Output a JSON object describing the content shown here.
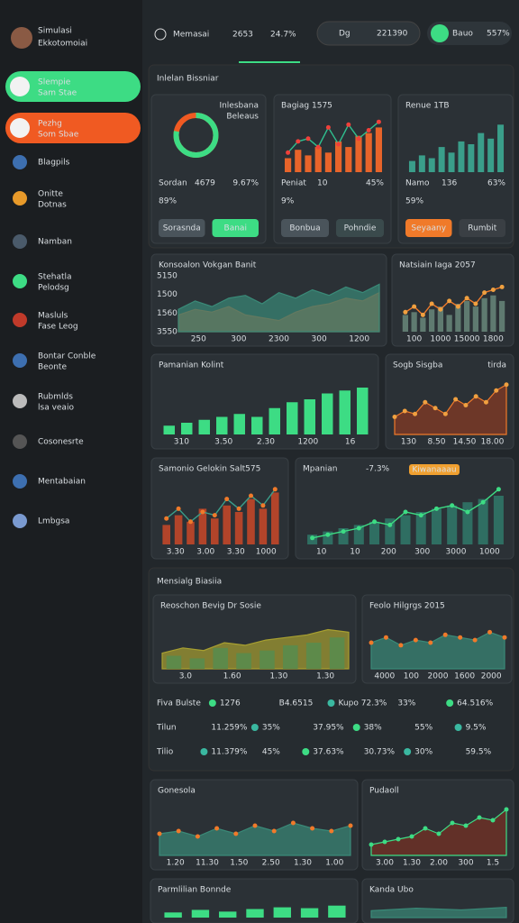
{
  "sidebar": {
    "title_line1": "Simulasi",
    "title_line2": "Ekkotomoiai",
    "items": [
      {
        "label": "Slempie",
        "sub": "Sam Stae"
      },
      {
        "label": "Pezhg",
        "sub": "Som Sbae"
      },
      {
        "label": "Blagpils"
      },
      {
        "label": "Onitte",
        "sub": "Dotnas"
      },
      {
        "label": "Namban"
      },
      {
        "label": "Stehatla",
        "sub": "Pelodsg"
      },
      {
        "label": "Masluls",
        "sub": "Fase Leog"
      },
      {
        "label": "Bontar Conble",
        "sub": "Beonte"
      },
      {
        "label": "Rubmlds",
        "sub": "lsa veaio"
      },
      {
        "label": "Cosonesrte"
      },
      {
        "label": "Mentabaian"
      },
      {
        "label": "Lmbgsa"
      }
    ]
  },
  "topbar": {
    "label": "Memasai",
    "value1": "2653",
    "value2": "24.7%",
    "search": "Dg",
    "search_value": "221390",
    "badge": "Bauo",
    "badge_value": "557%"
  },
  "section1": {
    "title": "Inlelan Bissniar"
  },
  "section2": {
    "title": "Mensialg Biasiia"
  },
  "cards": [
    {
      "type": "donut",
      "title": "Beleaus",
      "note": "Inlesbana",
      "value": 78,
      "ylim": [
        0,
        100
      ],
      "color": "#3ddc84",
      "ring_color": "#f05a22",
      "stats": [
        "Sordan",
        "4679",
        "9.67%"
      ],
      "big": "89%",
      "buttons": [
        "Sorasnda",
        "Banai"
      ]
    },
    {
      "type": "combo",
      "title": "Bagiag 1575",
      "ylim": [
        0,
        100
      ],
      "bars": [
        25,
        40,
        30,
        45,
        35,
        55,
        45,
        65,
        70,
        80
      ],
      "bar_color": "#e8642a",
      "line": [
        35,
        55,
        60,
        45,
        80,
        50,
        85,
        60,
        75,
        90
      ],
      "line_color": "#2fbf8f",
      "dot_color": "#f0403a",
      "stats": [
        "Peniat",
        "10",
        "45%"
      ],
      "big": "9%",
      "buttons": [
        "Bonbua",
        "Pohndie"
      ]
    },
    {
      "type": "combo",
      "title": "Renue 1TB",
      "ylim": [
        0,
        100
      ],
      "bars": [
        20,
        30,
        25,
        45,
        35,
        55,
        50,
        70,
        60,
        85
      ],
      "bar_color": "#3a9e8a",
      "stats": [
        "Namo",
        "136",
        "63%"
      ],
      "big": "59%",
      "buttons": [
        "Seyaany",
        "Rumbit"
      ]
    },
    {
      "type": "combo",
      "title": "Konsoalon Vokgan Banit",
      "ylim": [
        0,
        100
      ],
      "area": [
        40,
        55,
        45,
        60,
        65,
        50,
        70,
        60,
        75,
        65,
        80,
        70,
        85
      ],
      "area_color": "#3a8a78",
      "area2": [
        30,
        40,
        35,
        45,
        30,
        25,
        20,
        35,
        45,
        50,
        60,
        55,
        70
      ],
      "area2_color": "#c2502a",
      "ylabels": [
        "5150",
        "1500",
        "1560",
        "3550"
      ],
      "xlabels": [
        "250",
        "300",
        "2300",
        "300",
        "1200"
      ]
    },
    {
      "type": "combo",
      "title": "Natsiain Iaga 2057",
      "ylim": [
        0,
        100
      ],
      "bars": [
        30,
        35,
        25,
        40,
        45,
        30,
        50,
        55,
        45,
        60,
        65,
        55
      ],
      "bar_color": "#5f7a70",
      "line": [
        35,
        45,
        30,
        50,
        40,
        55,
        45,
        60,
        50,
        70,
        75,
        80
      ],
      "line_color": "#f07a2a",
      "dot_color": "#f0a040",
      "xlabels": [
        "100",
        "1000",
        "15000",
        "1800"
      ]
    },
    {
      "type": "combo",
      "title": "Pamanian Kolint",
      "ylim": [
        0,
        100
      ],
      "bars": [
        15,
        20,
        25,
        30,
        35,
        30,
        45,
        55,
        60,
        70,
        75,
        80
      ],
      "bar_color": "#3ddc84",
      "xlabels": [
        "310",
        "3.50",
        "2.30",
        "1200",
        "16"
      ]
    },
    {
      "type": "combo",
      "title": "Sogb Sisgba",
      "note": "tirda",
      "ylim": [
        0,
        100
      ],
      "area": [
        30,
        40,
        35,
        55,
        45,
        35,
        60,
        50,
        65,
        55,
        75,
        85
      ],
      "area_color": "#8a3a22",
      "line_color": "#f07a2a",
      "dot_color": "#f0a040",
      "xlabels": [
        "130",
        "8.50",
        "14.50",
        "18.00"
      ]
    },
    {
      "type": "combo",
      "title": "Samonio Gelokin Salt575",
      "ylim": [
        0,
        100
      ],
      "bars": [
        30,
        45,
        35,
        55,
        40,
        60,
        50,
        70,
        55,
        80
      ],
      "bar_color": "#b2442a",
      "line": [
        40,
        55,
        35,
        50,
        45,
        70,
        55,
        75,
        60,
        85
      ],
      "line_color": "#3a9e8a",
      "dot_color": "#f07a2a",
      "xlabels": [
        "3.30",
        "3.00",
        "3.30",
        "1000"
      ]
    },
    {
      "type": "combo",
      "title": "Mpanian",
      "note": "-7.3%",
      "tag": "Kiwanaaau",
      "ylim": [
        0,
        100
      ],
      "bars": [
        15,
        20,
        25,
        30,
        35,
        40,
        45,
        50,
        55,
        60,
        65,
        70,
        75
      ],
      "bar_color": "#2f6e62",
      "line": [
        10,
        15,
        20,
        25,
        35,
        30,
        50,
        45,
        55,
        60,
        50,
        65,
        85
      ],
      "line_color": "#3ddc84",
      "dot_color": "#3ddc84",
      "xlabels": [
        "10",
        "10",
        "200",
        "300",
        "3000",
        "1000"
      ]
    },
    {
      "type": "combo",
      "title": "Reoschon Bevig Dr Sosie",
      "ylim": [
        0,
        100
      ],
      "bars": [
        25,
        20,
        40,
        30,
        35,
        45,
        50,
        60
      ],
      "bar_color": "#5d8a4a",
      "area": [
        30,
        40,
        35,
        50,
        45,
        55,
        60,
        65,
        75,
        70
      ],
      "area_color": "#a8a030",
      "xlabels": [
        "3.0",
        "1.60",
        "1.30",
        "1.30"
      ]
    },
    {
      "type": "combo",
      "title": "Feolo Hilgrgs 2015",
      "ylim": [
        0,
        100
      ],
      "area": [
        50,
        60,
        45,
        55,
        50,
        65,
        60,
        55,
        70,
        60
      ],
      "area_color": "#3a8a78",
      "dot_color": "#f07a2a",
      "xlabels": [
        "4000",
        "100",
        "2000",
        "1600",
        "2000"
      ]
    },
    {
      "type": "combo",
      "title": "Gonesola",
      "ylim": [
        0,
        100
      ],
      "area": [
        40,
        45,
        35,
        50,
        40,
        55,
        45,
        60,
        50,
        45,
        55
      ],
      "area_color": "#3a8a78",
      "dot_color": "#f07a2a",
      "xlabels": [
        "1.20",
        "11.30",
        "1.50",
        "2.50",
        "1.30",
        "1.00"
      ]
    },
    {
      "type": "combo",
      "title": "Pudaoll",
      "ylim": [
        0,
        100
      ],
      "area": [
        20,
        25,
        30,
        35,
        50,
        40,
        60,
        55,
        70,
        65,
        85
      ],
      "area_color": "#7a3022",
      "line_color": "#3ddc84",
      "dot_color": "#3ddc84",
      "xlabels": [
        "3.00",
        "1.30",
        "2.00",
        "300",
        "1.5"
      ]
    },
    {
      "type": "combo",
      "title": "Parmlilian Bonnde",
      "ylim": [
        0,
        100
      ],
      "bars": [
        30,
        45,
        35,
        50,
        60,
        55,
        70
      ],
      "bar_color": "#3ddc84"
    },
    {
      "type": "combo",
      "title": "Kanda Ubo",
      "ylim": [
        0,
        100
      ],
      "area": [
        40,
        55,
        45,
        60
      ],
      "area_color": "#3a8a78"
    }
  ],
  "table": {
    "rows": [
      [
        "Fiva Bulste",
        "1276",
        "B4.6515",
        "Kupo 72.3%",
        "33%",
        "64.516%"
      ],
      [
        "Tilun",
        "11.259%",
        "35%",
        "37.95%",
        "38%",
        "55%",
        "9.5%"
      ],
      [
        "Tilio",
        "11.379%",
        "45%",
        "37.63%",
        "30.73%",
        "30%",
        "59.5%"
      ]
    ]
  }
}
